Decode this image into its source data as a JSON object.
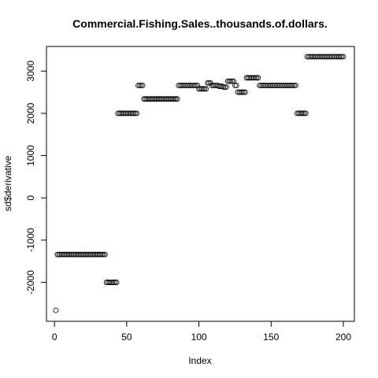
{
  "chart_data": {
    "type": "scatter",
    "title": "Commercial.Fishing.Sales..thousands.of.dollars.",
    "xlabel": "Index",
    "ylabel": "sd$derivative",
    "xlim": [
      1,
      200
    ],
    "ylim": [
      -2660,
      3340
    ],
    "x_ticks": [
      0,
      50,
      100,
      150,
      200
    ],
    "y_ticks": [
      -2000,
      -1000,
      0,
      1000,
      2000,
      3000
    ],
    "point_style": "open-circle",
    "grid": false,
    "legend": "none",
    "segments": [
      {
        "from": 1,
        "to": 1,
        "y": -2660
      },
      {
        "from": 2,
        "to": 35,
        "y": -1340
      },
      {
        "from": 36,
        "to": 43,
        "y": -2000
      },
      {
        "from": 44,
        "to": 57,
        "y": 2000
      },
      {
        "from": 58,
        "to": 61,
        "y": 2660
      },
      {
        "from": 62,
        "to": 85,
        "y": 2340
      },
      {
        "from": 86,
        "to": 99,
        "y": 2660
      },
      {
        "from": 100,
        "to": 105,
        "y": 2580
      },
      {
        "from": 106,
        "to": 108,
        "y": 2720
      },
      {
        "from": 109,
        "to": 113,
        "y": 2660
      },
      {
        "from": 114,
        "to": 116,
        "y": 2640
      },
      {
        "from": 117,
        "to": 119,
        "y": 2620
      },
      {
        "from": 120,
        "to": 124,
        "y": 2760
      },
      {
        "from": 125,
        "to": 126,
        "y": 2660
      },
      {
        "from": 127,
        "to": 132,
        "y": 2500
      },
      {
        "from": 133,
        "to": 141,
        "y": 2840
      },
      {
        "from": 142,
        "to": 167,
        "y": 2660
      },
      {
        "from": 168,
        "to": 174,
        "y": 2000
      },
      {
        "from": 175,
        "to": 200,
        "y": 3340
      }
    ]
  }
}
